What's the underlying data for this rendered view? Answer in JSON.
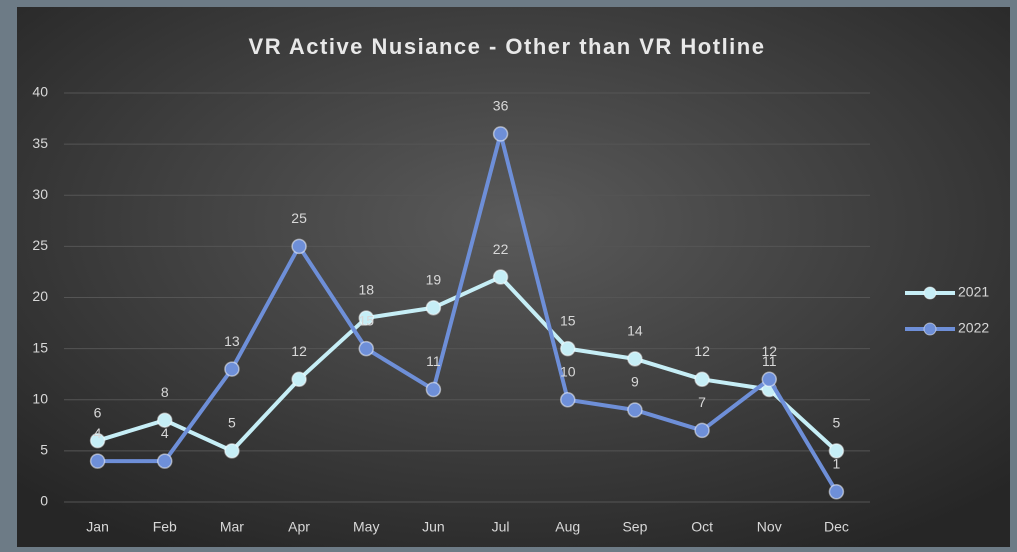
{
  "chart_data": {
    "type": "line",
    "title": "VR Active Nusiance - Other than VR Hotline",
    "categories": [
      "Jan",
      "Feb",
      "Mar",
      "Apr",
      "May",
      "Jun",
      "Jul",
      "Aug",
      "Sep",
      "Oct",
      "Nov",
      "Dec"
    ],
    "series": [
      {
        "name": "2021",
        "color": "#c6eef6",
        "values": [
          6,
          8,
          5,
          12,
          18,
          19,
          22,
          15,
          14,
          12,
          11,
          5
        ]
      },
      {
        "name": "2022",
        "color": "#6e8fd8",
        "values": [
          4,
          4,
          13,
          25,
          15,
          11,
          36,
          10,
          9,
          7,
          12,
          1
        ]
      }
    ],
    "ylim": [
      0,
      40
    ],
    "yticks": [
      0,
      5,
      10,
      15,
      20,
      25,
      30,
      35,
      40
    ],
    "grid": true,
    "legend": "right"
  }
}
